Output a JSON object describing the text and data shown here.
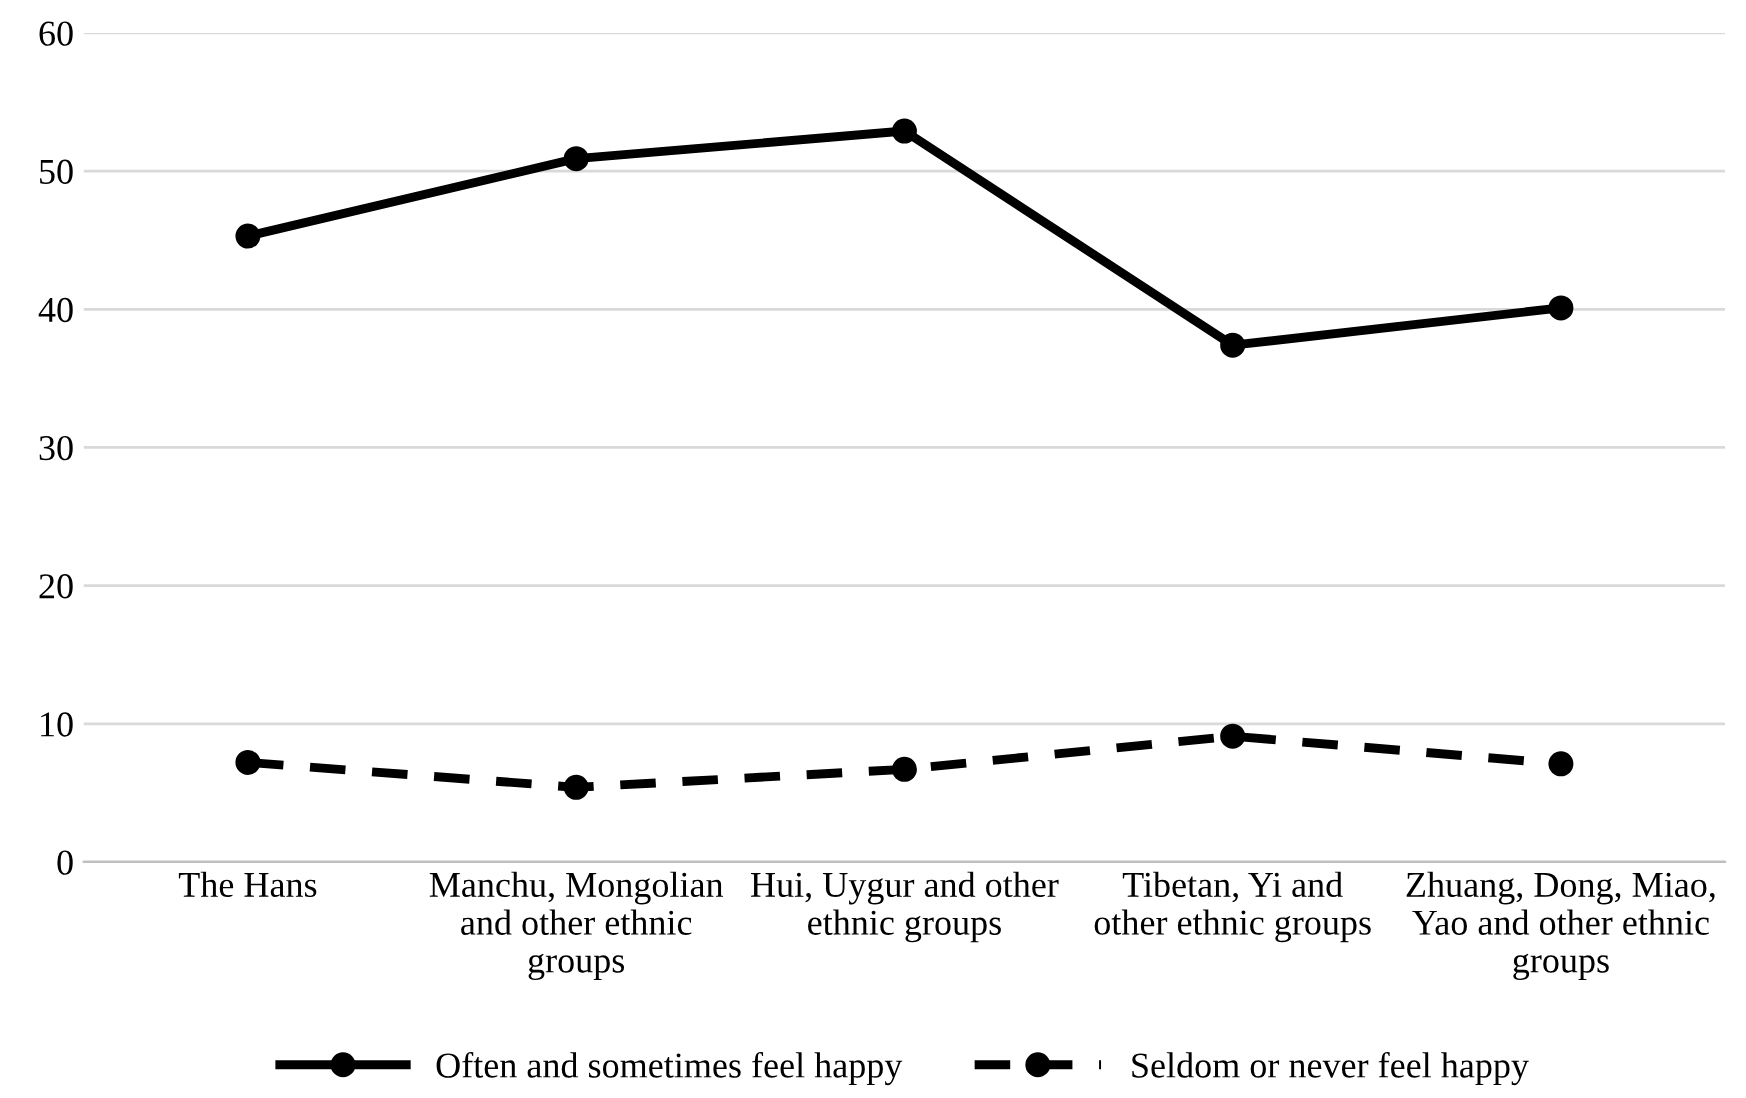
{
  "chart_data": {
    "type": "line",
    "categories": [
      "The Hans",
      "Manchu, Mongolian and other ethnic groups",
      "Hui, Uygur and other ethnic groups",
      "Tibetan, Yi and other ethnic groups",
      "Zhuang, Dong, Miao, Yao and other ethnic groups"
    ],
    "series": [
      {
        "name": "Often and sometimes feel happy",
        "color": "#000000",
        "line_style": "solid",
        "values": [
          45.3,
          50.9,
          52.9,
          37.4,
          40.1
        ]
      },
      {
        "name": "Seldom or never feel happy",
        "color": "#000000",
        "line_style": "dashed",
        "values": [
          7.2,
          5.4,
          6.7,
          9.1,
          7.1
        ]
      }
    ],
    "ylim": [
      0,
      60
    ],
    "yticks": [
      0,
      10,
      20,
      30,
      40,
      50,
      60
    ],
    "grid": "y",
    "legend": "bottom",
    "marker": "circle"
  }
}
